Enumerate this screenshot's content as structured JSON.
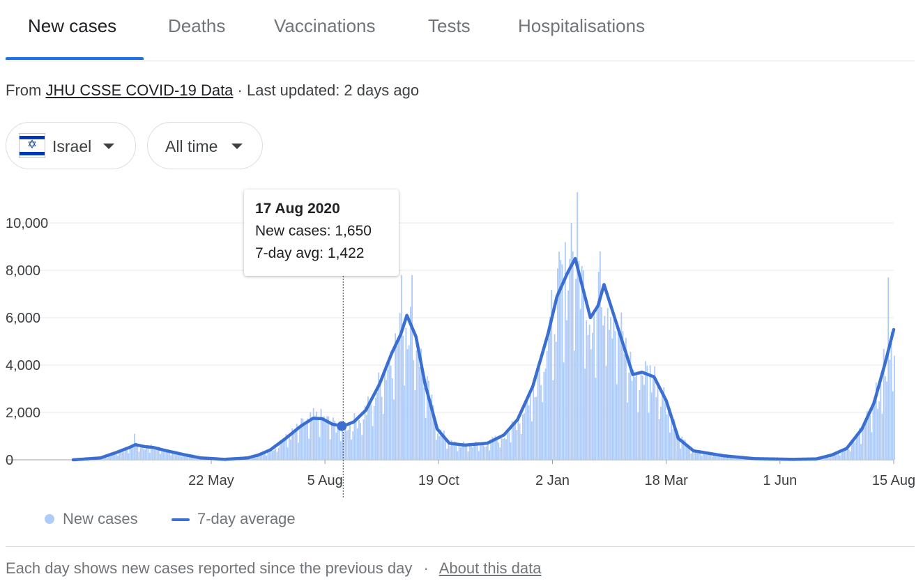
{
  "tabs": [
    {
      "label": "New cases",
      "active": true
    },
    {
      "label": "Deaths",
      "active": false
    },
    {
      "label": "Vaccinations",
      "active": false
    },
    {
      "label": "Tests",
      "active": false
    },
    {
      "label": "Hospitalisations",
      "active": false
    }
  ],
  "source": {
    "prefix": "From",
    "link": "JHU CSSE COVID-19 Data",
    "updated": "· Last updated: 2 days ago"
  },
  "filters": {
    "country": "Israel",
    "country_flag_icon": "israel-flag-icon",
    "range": "All time"
  },
  "tooltip": {
    "date": "17 Aug 2020",
    "new_cases": "New cases: 1,650",
    "avg": "7-day avg: 1,422"
  },
  "legend": {
    "bars": "New cases",
    "line": "7-day average"
  },
  "footer": {
    "text": "Each day shows new cases reported since the previous day",
    "separator": "·",
    "link": "About this data"
  },
  "colors": {
    "bars": "#aecbfa",
    "line": "#3a6fd1",
    "tab_accent": "#1a73e8",
    "grid": "#e8eaed"
  },
  "chart_data": {
    "type": "bar",
    "y_ticks": [
      "0",
      "2,000",
      "4,000",
      "6,000",
      "8,000",
      "10,000"
    ],
    "y_tick_values": [
      0,
      2000,
      4000,
      6000,
      8000,
      10000
    ],
    "ylim": [
      0,
      11500
    ],
    "x_ticks": [
      "22 May",
      "5 Aug",
      "19 Oct",
      "2 Jan",
      "18 Mar",
      "1 Jun",
      "15 Aug"
    ],
    "x_tick_dates": [
      "2020-05-22",
      "2020-08-05",
      "2020-10-19",
      "2021-01-02",
      "2021-03-18",
      "2021-06-01",
      "2021-08-15"
    ],
    "x_range": [
      "2020-02-21",
      "2021-08-15"
    ],
    "series": [
      {
        "name": "7-day average",
        "type": "line",
        "points": [
          [
            "2020-02-21",
            0
          ],
          [
            "2020-03-10",
            80
          ],
          [
            "2020-03-20",
            300
          ],
          [
            "2020-03-29",
            520
          ],
          [
            "2020-04-02",
            640
          ],
          [
            "2020-04-08",
            560
          ],
          [
            "2020-04-14",
            520
          ],
          [
            "2020-04-22",
            390
          ],
          [
            "2020-05-04",
            220
          ],
          [
            "2020-05-15",
            80
          ],
          [
            "2020-05-31",
            20
          ],
          [
            "2020-06-15",
            80
          ],
          [
            "2020-06-22",
            200
          ],
          [
            "2020-06-30",
            420
          ],
          [
            "2020-07-10",
            900
          ],
          [
            "2020-07-20",
            1420
          ],
          [
            "2020-07-28",
            1750
          ],
          [
            "2020-08-03",
            1740
          ],
          [
            "2020-08-10",
            1500
          ],
          [
            "2020-08-17",
            1422
          ],
          [
            "2020-08-24",
            1600
          ],
          [
            "2020-09-01",
            2100
          ],
          [
            "2020-09-10",
            3200
          ],
          [
            "2020-09-18",
            4500
          ],
          [
            "2020-09-24",
            5300
          ],
          [
            "2020-09-28",
            6100
          ],
          [
            "2020-10-04",
            5200
          ],
          [
            "2020-10-10",
            3200
          ],
          [
            "2020-10-18",
            1300
          ],
          [
            "2020-10-26",
            700
          ],
          [
            "2020-11-05",
            620
          ],
          [
            "2020-11-20",
            700
          ],
          [
            "2020-12-01",
            1050
          ],
          [
            "2020-12-10",
            1700
          ],
          [
            "2020-12-20",
            3100
          ],
          [
            "2020-12-30",
            5300
          ],
          [
            "2021-01-05",
            6900
          ],
          [
            "2021-01-12",
            7900
          ],
          [
            "2021-01-17",
            8500
          ],
          [
            "2021-01-21",
            7500
          ],
          [
            "2021-01-27",
            6000
          ],
          [
            "2021-02-01",
            6500
          ],
          [
            "2021-02-05",
            7400
          ],
          [
            "2021-02-08",
            6800
          ],
          [
            "2021-02-15",
            5400
          ],
          [
            "2021-02-24",
            3600
          ],
          [
            "2021-03-02",
            3700
          ],
          [
            "2021-03-10",
            3500
          ],
          [
            "2021-03-18",
            2500
          ],
          [
            "2021-03-26",
            900
          ],
          [
            "2021-04-05",
            380
          ],
          [
            "2021-04-25",
            170
          ],
          [
            "2021-05-15",
            50
          ],
          [
            "2021-06-10",
            20
          ],
          [
            "2021-06-25",
            40
          ],
          [
            "2021-07-05",
            200
          ],
          [
            "2021-07-15",
            480
          ],
          [
            "2021-07-25",
            1300
          ],
          [
            "2021-08-02",
            2400
          ],
          [
            "2021-08-09",
            4000
          ],
          [
            "2021-08-15",
            5500
          ]
        ]
      },
      {
        "name": "New cases",
        "type": "bar",
        "description": "Daily new cases scattered around the 7-day average; notable peaks ~7,800 (late Sep 2020), ~10,000 (Jan 2021), ~11,300 (mid Jan 2021), ~7,700 (Aug 2021)",
        "peaks": [
          [
            "2020-04-01",
            1100
          ],
          [
            "2020-09-24",
            7800
          ],
          [
            "2020-10-01",
            7800
          ],
          [
            "2021-01-14",
            10000
          ],
          [
            "2021-01-18",
            11300
          ],
          [
            "2021-02-02",
            8800
          ],
          [
            "2021-08-11",
            7700
          ]
        ]
      }
    ],
    "highlight": {
      "date": "2020-08-17",
      "new_cases": 1650,
      "avg": 1422
    },
    "legend_position": "bottom-left",
    "grid": true
  }
}
